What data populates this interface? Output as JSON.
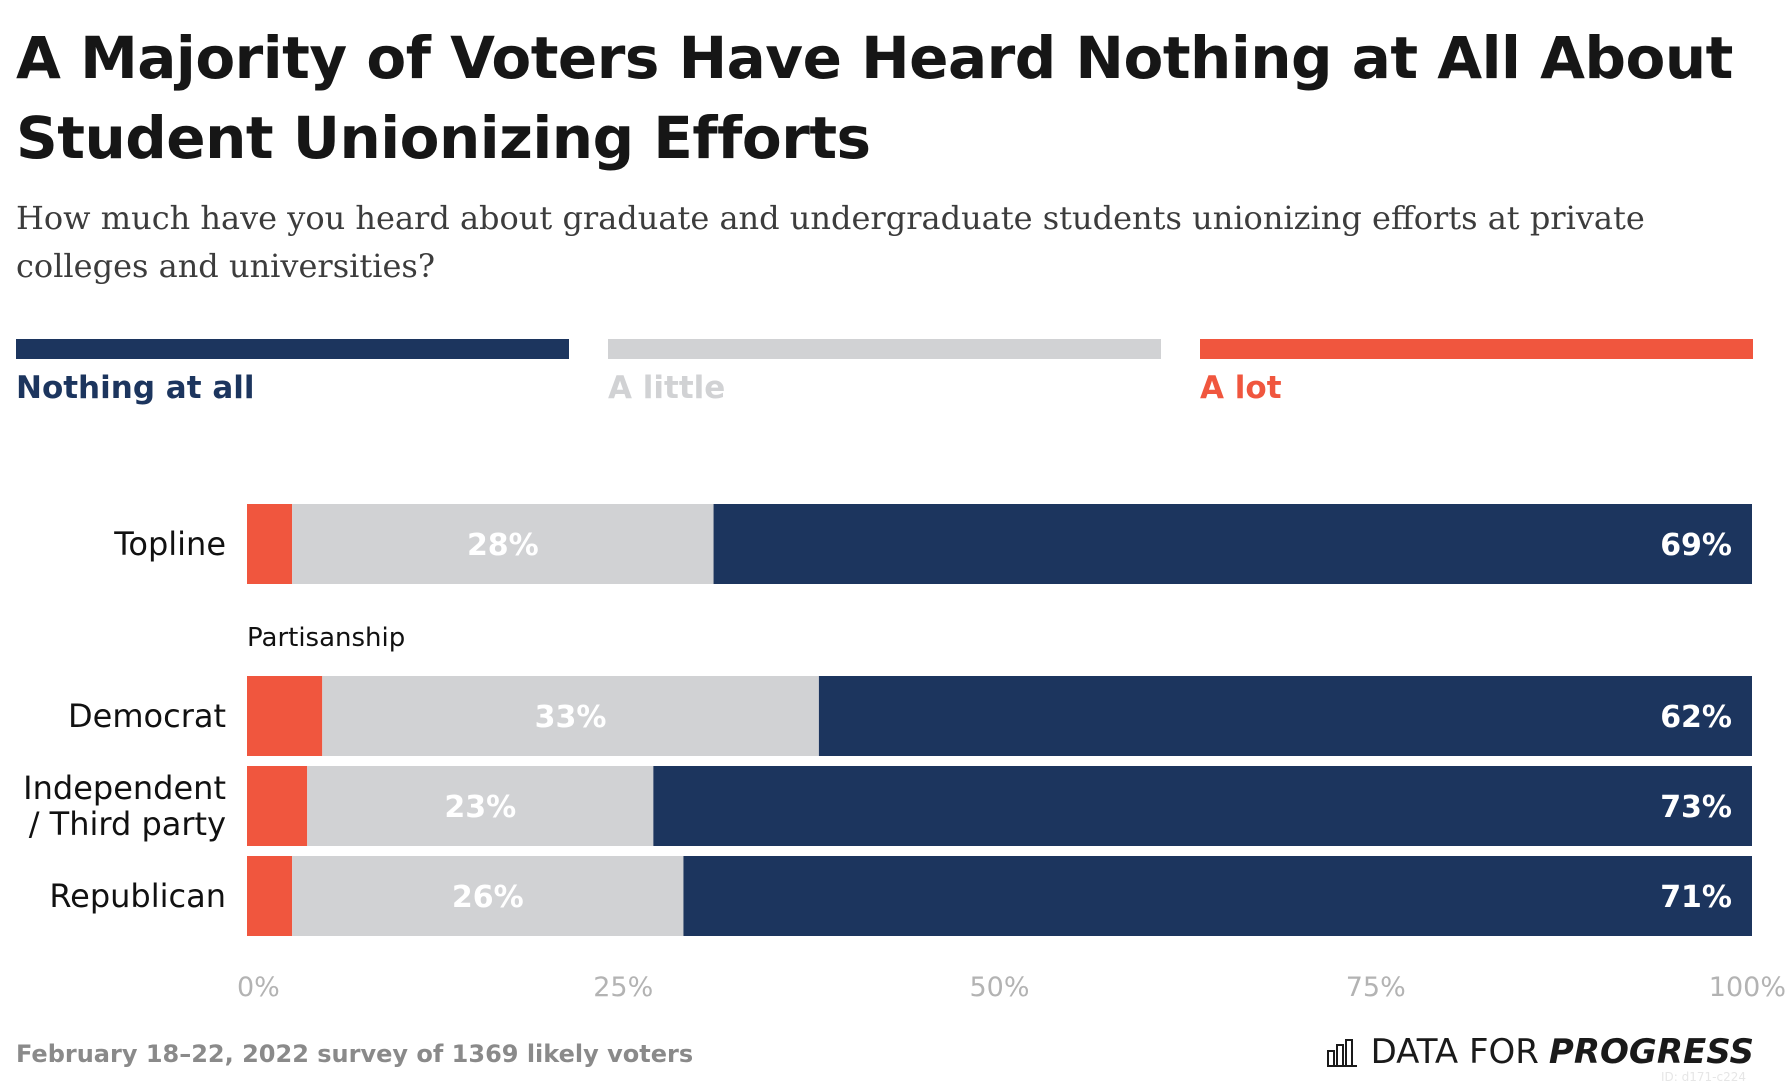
{
  "title": "A Majority of Voters Have Heard Nothing at All About Student Unionizing Efforts",
  "subtitle": "How much have you heard about graduate and undergraduate students unionizing efforts at private colleges and universities?",
  "colors": {
    "nothing_at_all": "#1c355e",
    "a_little": "#d1d2d4",
    "a_lot": "#f0563e"
  },
  "legend": [
    {
      "key": "nothing_at_all",
      "label": "Nothing at all"
    },
    {
      "key": "a_little",
      "label": "A little"
    },
    {
      "key": "a_lot",
      "label": "A lot"
    }
  ],
  "chart_data": {
    "type": "bar",
    "orientation": "horizontal",
    "stacked": true,
    "categories": [
      "Topline",
      "Democrat",
      "Independent / Third party",
      "Republican"
    ],
    "category_display": [
      [
        "Topline"
      ],
      [
        "Democrat"
      ],
      [
        "Independent",
        "/ Third party"
      ],
      [
        "Republican"
      ]
    ],
    "group_label": "Partisanship",
    "group_label_before": "Democrat",
    "series": [
      {
        "name": "A lot",
        "key": "a_lot",
        "values": [
          3,
          5,
          4,
          3
        ],
        "labeled": false
      },
      {
        "name": "A little",
        "key": "a_little",
        "values": [
          28,
          33,
          23,
          26
        ],
        "labeled": true
      },
      {
        "name": "Nothing at all",
        "key": "nothing_at_all",
        "values": [
          69,
          62,
          73,
          71
        ],
        "labeled": true
      }
    ],
    "xlim": [
      0,
      100
    ],
    "xticks": [
      "0%",
      "25%",
      "50%",
      "75%",
      "100%"
    ],
    "grid": false,
    "legend_position": "top"
  },
  "footer": "February 18–22, 2022 survey of 1369 likely voters",
  "brand": {
    "prefix": "DATA FOR",
    "bold": "PROGRESS",
    "id": "ID: d171-c224",
    "icon": "bar-chart-icon"
  }
}
